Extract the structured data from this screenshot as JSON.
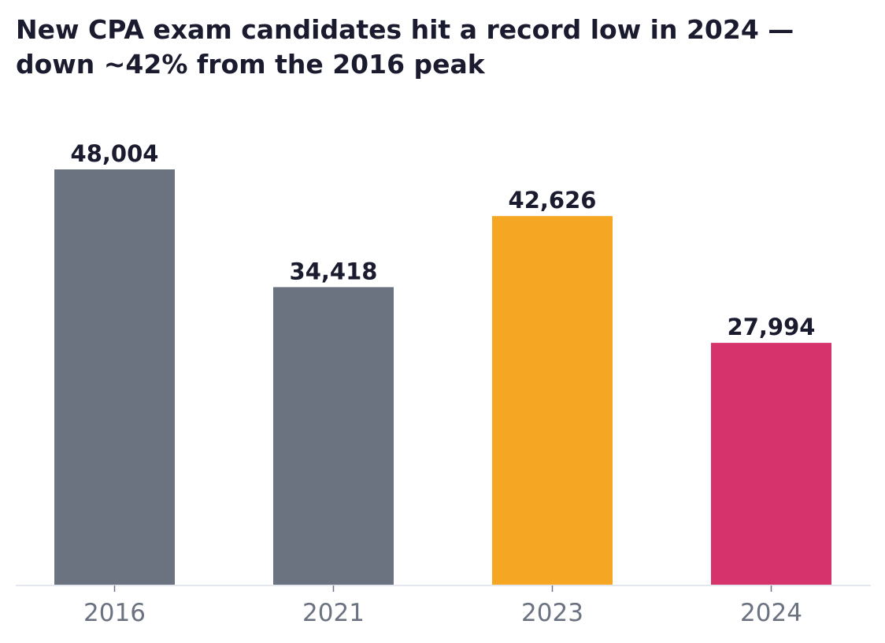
{
  "chart_data": {
    "type": "bar",
    "title": "New CPA exam candidates hit a record low in 2024 — down ~42% from the 2016 peak",
    "xlabel": "",
    "ylabel": "",
    "categories": [
      "2016",
      "2021",
      "2023",
      "2024"
    ],
    "values": [
      48004,
      34418,
      42626,
      27994
    ],
    "value_labels": [
      "48,004",
      "34,418",
      "42,626",
      "27,994"
    ],
    "bar_colors": [
      "#6b7280",
      "#6b7280",
      "#f5a623",
      "#d6336c"
    ],
    "ylim": [
      0,
      48004
    ],
    "grid": false,
    "legend": "none"
  },
  "colors": {
    "title_text": "#1a1b2e",
    "value_text": "#1a1b2e",
    "tick_text": "#6b7280",
    "axis_line": "#e5e7ef"
  }
}
